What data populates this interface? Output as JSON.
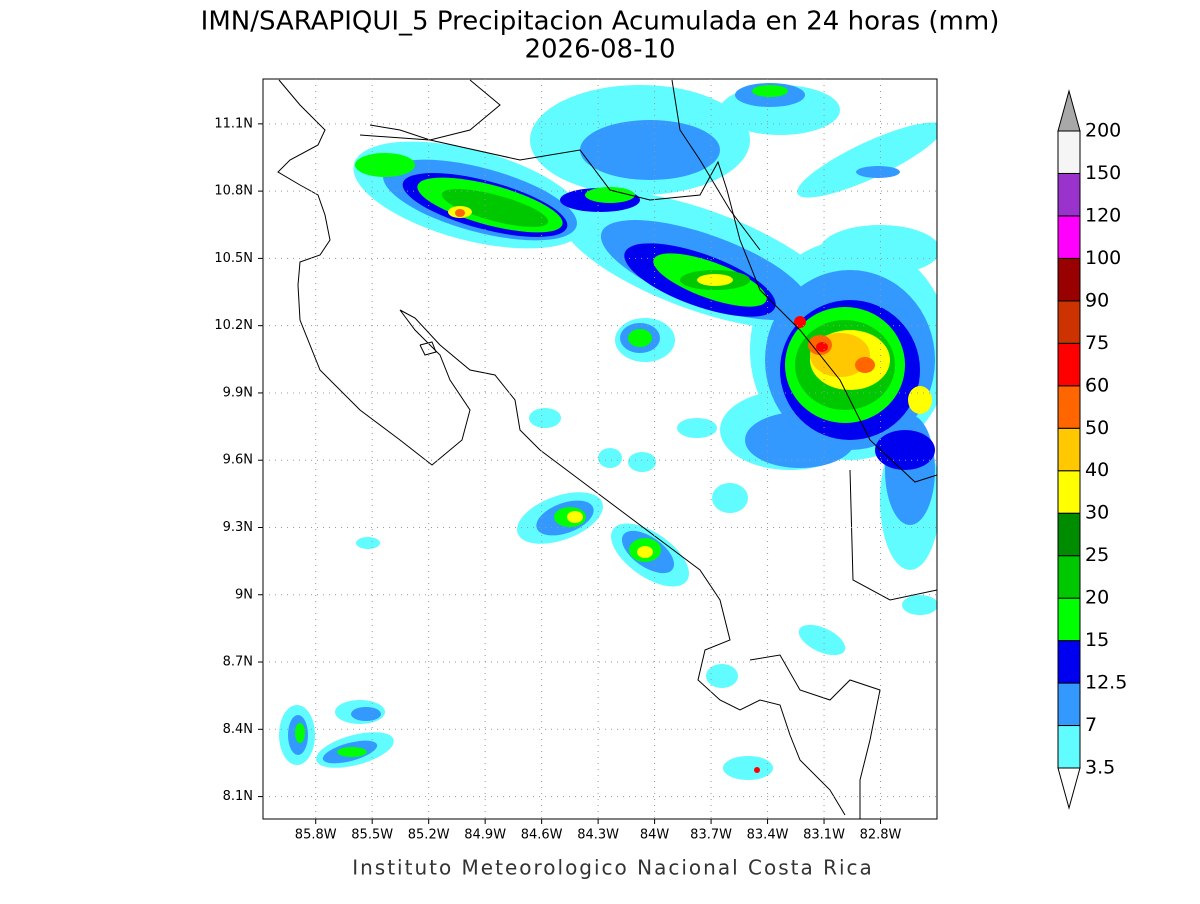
{
  "map": {
    "title": "IMN/SARAPIQUI_5 Precipitacion Acumulada en 24 horas (mm)",
    "subtitle": "2026-08-10",
    "footer": "Instituto Meteorologico Nacional Costa Rica",
    "xlim": [
      -86.08,
      -82.5
    ],
    "ylim": [
      8.0,
      11.3
    ],
    "xticks": [
      {
        "value": -85.8,
        "label": "85.8W"
      },
      {
        "value": -85.5,
        "label": "85.5W"
      },
      {
        "value": -85.2,
        "label": "85.2W"
      },
      {
        "value": -84.9,
        "label": "84.9W"
      },
      {
        "value": -84.6,
        "label": "84.6W"
      },
      {
        "value": -84.3,
        "label": "84.3W"
      },
      {
        "value": -84.0,
        "label": "84W"
      },
      {
        "value": -83.7,
        "label": "83.7W"
      },
      {
        "value": -83.4,
        "label": "83.4W"
      },
      {
        "value": -83.1,
        "label": "83.1W"
      },
      {
        "value": -82.8,
        "label": "82.8W"
      }
    ],
    "yticks": [
      {
        "value": 8.1,
        "label": "8.1N"
      },
      {
        "value": 8.4,
        "label": "8.4N"
      },
      {
        "value": 8.7,
        "label": "8.7N"
      },
      {
        "value": 9.0,
        "label": "9N"
      },
      {
        "value": 9.3,
        "label": "9.3N"
      },
      {
        "value": 9.6,
        "label": "9.6N"
      },
      {
        "value": 9.9,
        "label": "9.9N"
      },
      {
        "value": 10.2,
        "label": "10.2N"
      },
      {
        "value": 10.5,
        "label": "10.5N"
      },
      {
        "value": 10.8,
        "label": "10.8N"
      },
      {
        "value": 11.1,
        "label": "11.1N"
      }
    ],
    "colorbar": {
      "levels": [
        3.5,
        7,
        12.5,
        15,
        20,
        25,
        30,
        40,
        50,
        60,
        75,
        90,
        100,
        120,
        150,
        200
      ],
      "colors": [
        "#60fcff",
        "#3399ff",
        "#0000f0",
        "#00ff00",
        "#00c800",
        "#008c00",
        "#ffff00",
        "#ffc800",
        "#ff6600",
        "#ff0000",
        "#cc3300",
        "#990000",
        "#ff00ff",
        "#9933cc",
        "#f5f5f5"
      ],
      "under_color": "#ffffff",
      "over_color": "#a8a8a8"
    }
  }
}
